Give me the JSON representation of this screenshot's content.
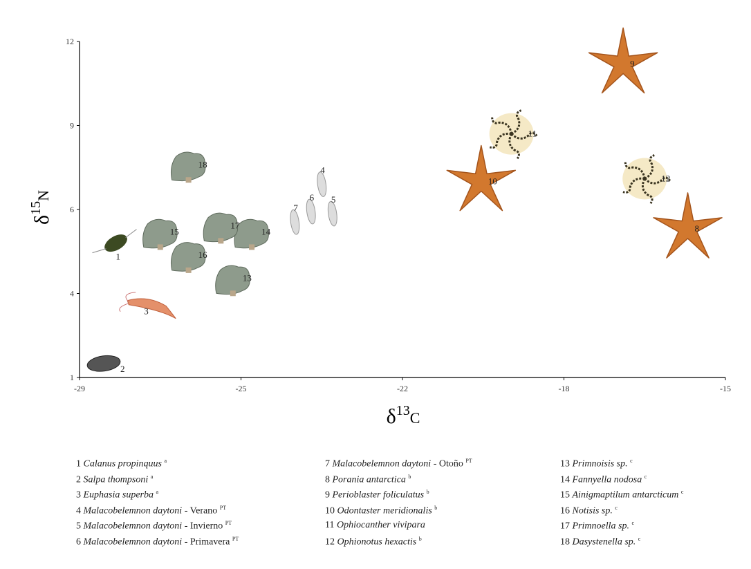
{
  "chart_data": {
    "type": "scatter",
    "xlabel": [
      "δ",
      "13",
      "C"
    ],
    "ylabel": [
      "δ",
      "15",
      "N"
    ],
    "labels": [
      "1",
      "2",
      "3",
      "4",
      "5",
      "6",
      "7",
      "8",
      "9",
      "10",
      "11",
      "12",
      "13",
      "14",
      "15",
      "16",
      "17",
      "18"
    ],
    "x": [
      -28.1,
      -28.4,
      -27.3,
      -23.5,
      -23.3,
      -23.7,
      -24.0,
      -15.7,
      -16.9,
      -20.05,
      -19.3,
      -16.5,
      -25.2,
      -24.8,
      -27.0,
      -26.3,
      -25.5,
      -26.3
    ],
    "y": [
      5.2,
      1.5,
      3.6,
      6.9,
      5.9,
      5.95,
      5.7,
      5.54,
      11.2,
      7.0,
      8.7,
      7.1,
      4.3,
      5.4,
      5.4,
      4.85,
      5.55,
      7.5
    ],
    "xlim": [
      -29,
      -15
    ],
    "xticks": [
      -29,
      -25,
      -22,
      -18,
      -15
    ],
    "ylim": [
      1,
      12
    ],
    "yticks": [
      1,
      4,
      6,
      9,
      12
    ],
    "legend": [
      {
        "number": "1",
        "species": "Calanus propinquus",
        "sup": "a"
      },
      {
        "number": "2",
        "species": "Salpa thompsoni",
        "sup": "a"
      },
      {
        "number": "3",
        "species": "Euphasia superba",
        "sup": "a"
      },
      {
        "number": "4",
        "species": "Malacobelemnon daytoni",
        "suffix": "- Verano",
        "sup": "PT"
      },
      {
        "number": "5",
        "species": "Malacobelemnon daytoni",
        "suffix": "- Invierno",
        "sup": "PT"
      },
      {
        "number": "6",
        "species": "Malacobelemnon daytoni",
        "suffix": "- Primavera",
        "sup": "PT"
      },
      {
        "number": "7",
        "species": "Malacobelemnon daytoni",
        "suffix": "- Otoño",
        "sup": "PT"
      },
      {
        "number": "8",
        "species": "Porania antarctica",
        "sup": "b"
      },
      {
        "number": "9",
        "species": "Perioblaster foliculatus",
        "sup": "b"
      },
      {
        "number": "10",
        "species": "Odontaster meridionalis",
        "sup": "b"
      },
      {
        "number": "11",
        "species": "Ophiocanther vivipara"
      },
      {
        "number": "12",
        "species": "Ophionotus hexactis",
        "sup": "b"
      },
      {
        "number": "13",
        "species": "Primnoisis sp.",
        "sup": "c"
      },
      {
        "number": "14",
        "species": "Fannyella nodosa",
        "sup": "c"
      },
      {
        "number": "15",
        "species": "Ainigmaptilum antarcticum",
        "sup": "c"
      },
      {
        "number": "16",
        "species": "Notisis sp.",
        "sup": "c"
      },
      {
        "number": "17",
        "species": "Primnoella sp.",
        "sup": "c"
      },
      {
        "number": "18",
        "species": "Dasystenella sp.",
        "sup": "c"
      }
    ]
  }
}
